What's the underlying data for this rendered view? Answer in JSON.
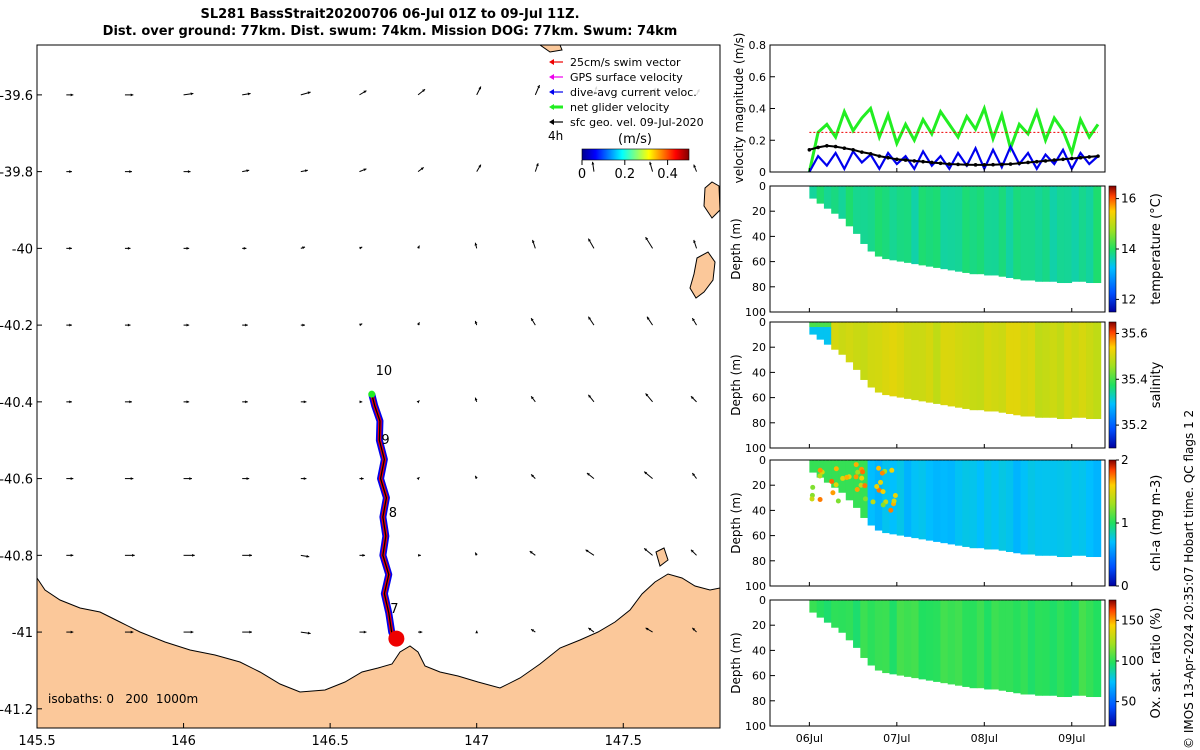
{
  "title": {
    "line1": "SL281 BassStrait20200706 06-Jul 01Z to 09-Jul 11Z.",
    "line2": "Dist. over ground: 77km. Dist. swum: 74km. Mission DOG: 77km. Swum: 74km"
  },
  "credit": "© IMOS 13-Apr-2024 20:35:07 Hobart time. QC flags 1  2",
  "colors": {
    "land": "#fbc89a",
    "track_dive": "#0000ee",
    "track_swim": "#ee0000",
    "net": "#22ee22",
    "geo": "#000000"
  },
  "chart_data": [
    {
      "type": "map",
      "xticks": [
        145.5,
        146,
        146.5,
        147,
        147.5
      ],
      "yticks": [
        -39.6,
        -39.8,
        -40,
        -40.2,
        -40.4,
        -40.6,
        -40.8,
        -41,
        -41.2
      ],
      "xlim": [
        145.5,
        147.83
      ],
      "ylim": [
        -41.25,
        -39.47
      ],
      "legend": {
        "position": "top-right",
        "entries": [
          "25cm/s swim vector",
          "GPS surface velocity",
          "dive-avg current veloc.",
          "net glider velocity",
          "sfc geo. vel. 09-Jul-2020"
        ],
        "colors": [
          "#ee0000",
          "#ee00ee",
          "#0000ee",
          "#22ee22",
          "#000000"
        ]
      },
      "time_label": "4h",
      "colorbar": {
        "label": "(m/s)",
        "ticks": [
          0,
          0.2,
          0.4
        ],
        "range": [
          0,
          0.5
        ]
      },
      "isobath_note": "isobaths: 0   200  1000m",
      "day_markers": [
        {
          "label": "10",
          "lon": 146.655,
          "lat": -40.33
        },
        {
          "label": "9",
          "lon": 146.675,
          "lat": -40.51
        },
        {
          "label": "8",
          "lon": 146.7,
          "lat": -40.7
        },
        {
          "label": "7",
          "lon": 146.705,
          "lat": -40.95
        }
      ],
      "track": [
        [
          146.726,
          -41.03
        ],
        [
          146.71,
          -41.0
        ],
        [
          146.7,
          -40.95
        ],
        [
          146.685,
          -40.9
        ],
        [
          146.7,
          -40.85
        ],
        [
          146.68,
          -40.8
        ],
        [
          146.69,
          -40.75
        ],
        [
          146.68,
          -40.7
        ],
        [
          146.692,
          -40.65
        ],
        [
          146.672,
          -40.6
        ],
        [
          146.685,
          -40.55
        ],
        [
          146.668,
          -40.5
        ],
        [
          146.67,
          -40.45
        ],
        [
          146.652,
          -40.41
        ],
        [
          146.642,
          -40.38
        ]
      ],
      "geo_vectors": {
        "note": "surface geostrophic velocity field: east, north components in m/s",
        "lons": [
          145.6,
          145.8,
          146.0,
          146.2,
          146.4,
          146.6,
          146.8,
          147.0,
          147.2,
          147.4,
          147.6,
          147.75
        ],
        "lats": [
          -39.6,
          -39.8,
          -40.0,
          -40.2,
          -40.4,
          -40.6,
          -40.8,
          -41.0
        ],
        "u": [
          [
            0.05,
            0.06,
            0.07,
            0.06,
            0.07,
            0.05,
            0.05,
            0.03,
            0.03,
            0.02,
            0.02,
            0.02
          ],
          [
            0.04,
            0.05,
            0.05,
            0.05,
            0.05,
            0.05,
            0.04,
            0.03,
            0.02,
            -0.01,
            -0.02,
            -0.02
          ],
          [
            0.04,
            0.04,
            0.04,
            0.03,
            0.03,
            0.02,
            0.01,
            -0.01,
            -0.02,
            -0.04,
            -0.05,
            -0.02
          ],
          [
            0.04,
            0.04,
            0.04,
            0.04,
            0.03,
            0.02,
            0.01,
            -0.01,
            -0.03,
            -0.04,
            -0.04,
            -0.03
          ],
          [
            0.04,
            0.05,
            0.04,
            0.04,
            0.04,
            0.02,
            0.01,
            -0.01,
            -0.03,
            -0.04,
            -0.05,
            -0.04
          ],
          [
            0.05,
            0.06,
            0.06,
            0.05,
            0.04,
            0.03,
            0.01,
            -0.01,
            -0.03,
            -0.05,
            -0.06,
            -0.03
          ],
          [
            0.05,
            0.07,
            0.08,
            0.07,
            0.06,
            0.04,
            0.02,
            -0.01,
            -0.04,
            -0.06,
            -0.06,
            -0.04
          ],
          [
            0.05,
            0.06,
            0.07,
            0.07,
            0.07,
            0.05,
            0.03,
            0.0,
            -0.03,
            -0.04,
            -0.05,
            -0.03
          ]
        ],
        "v": [
          [
            0.0,
            0.0,
            0.01,
            0.01,
            0.02,
            0.03,
            0.04,
            0.06,
            0.07,
            0.06,
            0.05,
            0.04
          ],
          [
            0.0,
            0.0,
            0.0,
            0.01,
            0.01,
            0.02,
            0.03,
            0.05,
            0.06,
            0.07,
            0.07,
            0.05
          ],
          [
            0.0,
            0.0,
            0.0,
            0.0,
            0.01,
            0.01,
            0.02,
            0.04,
            0.06,
            0.07,
            0.08,
            0.06
          ],
          [
            0.0,
            0.0,
            0.0,
            0.0,
            0.0,
            0.01,
            0.02,
            0.03,
            0.05,
            0.06,
            0.06,
            0.05
          ],
          [
            0.0,
            0.0,
            0.0,
            0.0,
            0.0,
            0.0,
            0.01,
            0.03,
            0.04,
            0.05,
            0.06,
            0.04
          ],
          [
            0.0,
            0.0,
            0.0,
            0.0,
            0.0,
            0.0,
            0.01,
            0.02,
            0.03,
            0.04,
            0.05,
            0.04
          ],
          [
            0.0,
            0.0,
            0.0,
            0.0,
            -0.01,
            0.0,
            0.0,
            0.02,
            0.03,
            0.04,
            0.05,
            0.04
          ],
          [
            0.0,
            0.0,
            0.0,
            0.0,
            -0.01,
            0.0,
            0.0,
            0.01,
            0.02,
            0.03,
            0.03,
            0.03
          ]
        ]
      }
    },
    {
      "type": "line",
      "ylabel": "velocity magnitude (m/s)",
      "ylim": [
        0,
        0.8
      ],
      "yticks": [
        0,
        0.2,
        0.4,
        0.6,
        0.8
      ],
      "x": [
        0,
        0.1,
        0.2,
        0.3,
        0.4,
        0.5,
        0.6,
        0.7,
        0.8,
        0.9,
        1.0,
        1.1,
        1.2,
        1.3,
        1.4,
        1.5,
        1.6,
        1.7,
        1.8,
        1.9,
        2.0,
        2.1,
        2.2,
        2.3,
        2.4,
        2.5,
        2.6,
        2.7,
        2.8,
        2.9,
        3.0,
        3.1,
        3.2,
        3.3
      ],
      "series": [
        {
          "name": "net glider velocity",
          "values": [
            0.0,
            0.25,
            0.3,
            0.22,
            0.38,
            0.26,
            0.34,
            0.4,
            0.22,
            0.36,
            0.18,
            0.3,
            0.2,
            0.33,
            0.24,
            0.38,
            0.3,
            0.22,
            0.35,
            0.27,
            0.4,
            0.21,
            0.36,
            0.15,
            0.3,
            0.24,
            0.38,
            0.2,
            0.34,
            0.26,
            0.12,
            0.33,
            0.22,
            0.3
          ]
        },
        {
          "name": "dive-avg current veloc.",
          "values": [
            0.0,
            0.1,
            0.04,
            0.12,
            0.02,
            0.13,
            0.06,
            0.11,
            0.02,
            0.12,
            0.05,
            0.1,
            0.02,
            0.13,
            0.04,
            0.1,
            0.02,
            0.12,
            0.04,
            0.15,
            0.02,
            0.14,
            0.03,
            0.16,
            0.05,
            0.12,
            0.02,
            0.11,
            0.05,
            0.14,
            0.02,
            0.12,
            0.05,
            0.1
          ]
        },
        {
          "name": "sfc geo. vel. 09-Jul-2020",
          "values": [
            0.14,
            0.155,
            0.165,
            0.16,
            0.15,
            0.14,
            0.125,
            0.115,
            0.1,
            0.09,
            0.08,
            0.075,
            0.07,
            0.065,
            0.06,
            0.055,
            0.05,
            0.048,
            0.046,
            0.045,
            0.045,
            0.046,
            0.048,
            0.05,
            0.055,
            0.06,
            0.065,
            0.07,
            0.075,
            0.08,
            0.085,
            0.09,
            0.095,
            0.1
          ]
        },
        {
          "name": "25cm/s swim vector",
          "values": [
            0.25,
            0.25,
            0.25,
            0.25,
            0.25,
            0.25,
            0.25,
            0.25,
            0.25,
            0.25,
            0.25,
            0.25,
            0.25,
            0.25,
            0.25,
            0.25,
            0.25,
            0.25,
            0.25,
            0.25,
            0.25,
            0.25,
            0.25,
            0.25,
            0.25,
            0.25,
            0.25,
            0.25,
            0.25,
            0.25,
            0.25,
            0.25,
            0.25,
            0.25
          ]
        }
      ]
    },
    {
      "type": "heatmap",
      "variable": "temperature",
      "ylabel": "Depth (m)",
      "ylim": [
        0,
        100
      ],
      "yticks": [
        0,
        20,
        40,
        60,
        80,
        100
      ],
      "colorbar": {
        "label": "temperature (°C)",
        "ticks": [
          12,
          14,
          16
        ],
        "range": [
          11.5,
          16.5
        ]
      },
      "typical_value": 13.8
    },
    {
      "type": "heatmap",
      "variable": "salinity",
      "ylabel": "Depth (m)",
      "ylim": [
        0,
        100
      ],
      "yticks": [
        0,
        20,
        40,
        60,
        80,
        100
      ],
      "colorbar": {
        "label": "salinity",
        "ticks": [
          35.2,
          35.4,
          35.6
        ],
        "range": [
          35.1,
          35.65
        ]
      },
      "typical_value": 35.5
    },
    {
      "type": "heatmap",
      "variable": "chl-a",
      "ylabel": "Depth (m)",
      "ylim": [
        0,
        100
      ],
      "yticks": [
        0,
        20,
        40,
        60,
        80,
        100
      ],
      "colorbar": {
        "label": "chl-a (mg m-3)",
        "ticks": [
          0,
          1,
          2
        ],
        "range": [
          0,
          2
        ]
      },
      "typical_value": 0.7
    },
    {
      "type": "heatmap",
      "variable": "oxygen saturation",
      "ylabel": "Depth (m)",
      "ylim": [
        0,
        100
      ],
      "yticks": [
        0,
        20,
        40,
        60,
        80,
        100
      ],
      "xticks": [
        "06Jul",
        "07Jul",
        "08Jul",
        "09Jul"
      ],
      "colorbar": {
        "label": "Ox. sat. ratio (%)",
        "ticks": [
          50,
          100,
          150
        ],
        "range": [
          20,
          175
        ]
      },
      "typical_value": 100
    }
  ],
  "profiles": {
    "bottom_depth": [
      10,
      14,
      18,
      22,
      26,
      32,
      38,
      46,
      52,
      56,
      58,
      59,
      60,
      61,
      62,
      63,
      64,
      65,
      66,
      67,
      68,
      69,
      70,
      70,
      71,
      71,
      72,
      73,
      74,
      75,
      75,
      76,
      76,
      76,
      77,
      77,
      76,
      76,
      77,
      77
    ]
  }
}
